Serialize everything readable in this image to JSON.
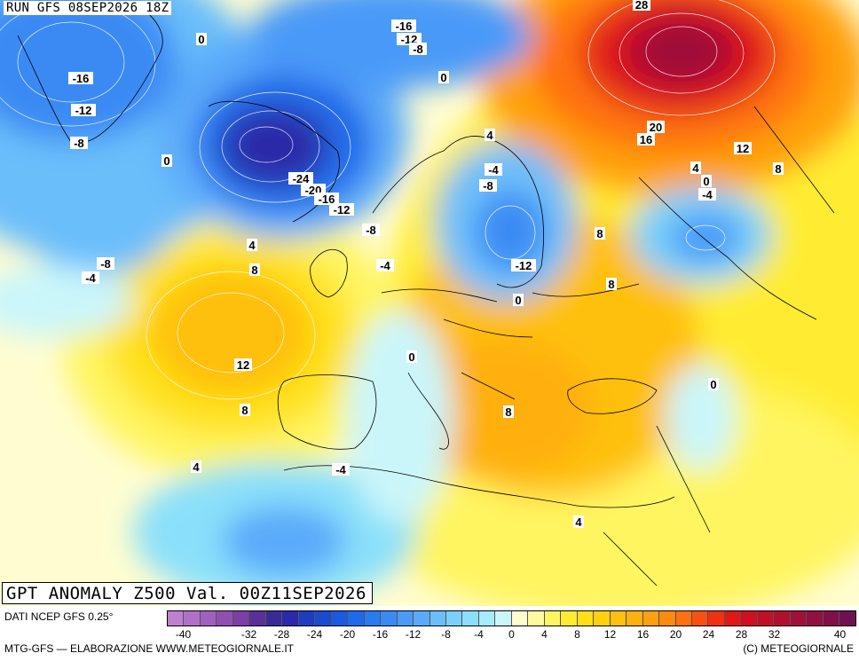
{
  "header": {
    "run_label": "RUN GFS 08SEP2026 18Z"
  },
  "title": "GPT ANOMALY Z500 Val. 00Z11SEP2026",
  "footer": {
    "data_source": "DATI NCEP GFS 0.25°",
    "credit": "MTG-GFS — ELABORAZIONE WWW.METEOGIORNALE.IT",
    "copyright": "(C) METEOGIORNALE"
  },
  "colorbar": {
    "levels": [
      -42,
      -40,
      -38,
      -36,
      -34,
      -32,
      -30,
      -28,
      -26,
      -24,
      -22,
      -20,
      -18,
      -16,
      -14,
      -12,
      -10,
      -8,
      -6,
      -4,
      -2,
      0,
      2,
      4,
      6,
      8,
      10,
      12,
      14,
      16,
      18,
      20,
      22,
      24,
      26,
      28,
      30,
      32,
      34,
      36,
      38,
      40,
      42
    ],
    "colors": [
      "#c080d0",
      "#b070c8",
      "#a060c0",
      "#9050b0",
      "#7a40a8",
      "#5a3098",
      "#3a2a98",
      "#2a2aa8",
      "#1e3cc0",
      "#1a4ad0",
      "#1a5ae0",
      "#1e6aea",
      "#2a7af0",
      "#3a8af4",
      "#4a9af8",
      "#5aaafa",
      "#6abefa",
      "#7ad0fa",
      "#8ae0fa",
      "#a6ecfa",
      "#caf6fa",
      "#fffdd0",
      "#fffaa0",
      "#fff560",
      "#ffec30",
      "#ffe018",
      "#ffd010",
      "#ffc010",
      "#ffb010",
      "#ffa010",
      "#ff8a10",
      "#ff7010",
      "#f85010",
      "#f03010",
      "#e01818",
      "#d01020",
      "#c01028",
      "#b01030",
      "#a01038",
      "#901040",
      "#801048",
      "#701050"
    ],
    "tick_labels": [
      "-40",
      "-32",
      "-28",
      "-24",
      "-20",
      "-16",
      "-12",
      "-8",
      "-4",
      "0",
      "4",
      "8",
      "12",
      "16",
      "20",
      "24",
      "28",
      "32",
      "40"
    ],
    "tick_values": [
      -40,
      -32,
      -28,
      -24,
      -20,
      -16,
      -12,
      -8,
      -4,
      0,
      4,
      8,
      12,
      16,
      20,
      24,
      28,
      32,
      40
    ]
  },
  "contour_labels": [
    {
      "text": "0",
      "place": "north-atlantic-nw"
    },
    {
      "text": "-16",
      "place": "greenland-west"
    },
    {
      "text": "-12",
      "place": "greenland-west"
    },
    {
      "text": "-8",
      "place": "greenland-west"
    },
    {
      "text": "0",
      "place": "north-atlantic"
    },
    {
      "text": "-8",
      "place": "labrador-sea"
    },
    {
      "text": "-4",
      "place": "labrador-sea"
    },
    {
      "text": "-24",
      "place": "iceland-low"
    },
    {
      "text": "-20",
      "place": "iceland-low"
    },
    {
      "text": "-16",
      "place": "iceland-low"
    },
    {
      "text": "-12",
      "place": "iceland-low"
    },
    {
      "text": "-8",
      "place": "north-sea"
    },
    {
      "text": "-4",
      "place": "north-sea"
    },
    {
      "text": "-16",
      "place": "svalbard"
    },
    {
      "text": "-12",
      "place": "svalbard"
    },
    {
      "text": "-8",
      "place": "svalbard"
    },
    {
      "text": "0",
      "place": "barents-sea"
    },
    {
      "text": "28",
      "place": "north-russia"
    },
    {
      "text": "20",
      "place": "russia"
    },
    {
      "text": "16",
      "place": "russia"
    },
    {
      "text": "12",
      "place": "russia"
    },
    {
      "text": "8",
      "place": "russia"
    },
    {
      "text": "4",
      "place": "baltic"
    },
    {
      "text": "-4",
      "place": "baltic"
    },
    {
      "text": "-8",
      "place": "baltic"
    },
    {
      "text": "-12",
      "place": "baltic"
    },
    {
      "text": "0",
      "place": "baltic"
    },
    {
      "text": "4",
      "place": "volga"
    },
    {
      "text": "0",
      "place": "volga"
    },
    {
      "text": "-4",
      "place": "volga"
    },
    {
      "text": "8",
      "place": "east-europe"
    },
    {
      "text": "8",
      "place": "ukraine"
    },
    {
      "text": "4",
      "place": "atlantic-high"
    },
    {
      "text": "8",
      "place": "atlantic-high"
    },
    {
      "text": "12",
      "place": "atlantic-high"
    },
    {
      "text": "8",
      "place": "atlantic-high"
    },
    {
      "text": "4",
      "place": "atlantic-high"
    },
    {
      "text": "0",
      "place": "france"
    },
    {
      "text": "8",
      "place": "balkans"
    },
    {
      "text": "0",
      "place": "middle-east"
    },
    {
      "text": "-4",
      "place": "north-africa"
    },
    {
      "text": "4",
      "place": "egypt"
    }
  ]
}
